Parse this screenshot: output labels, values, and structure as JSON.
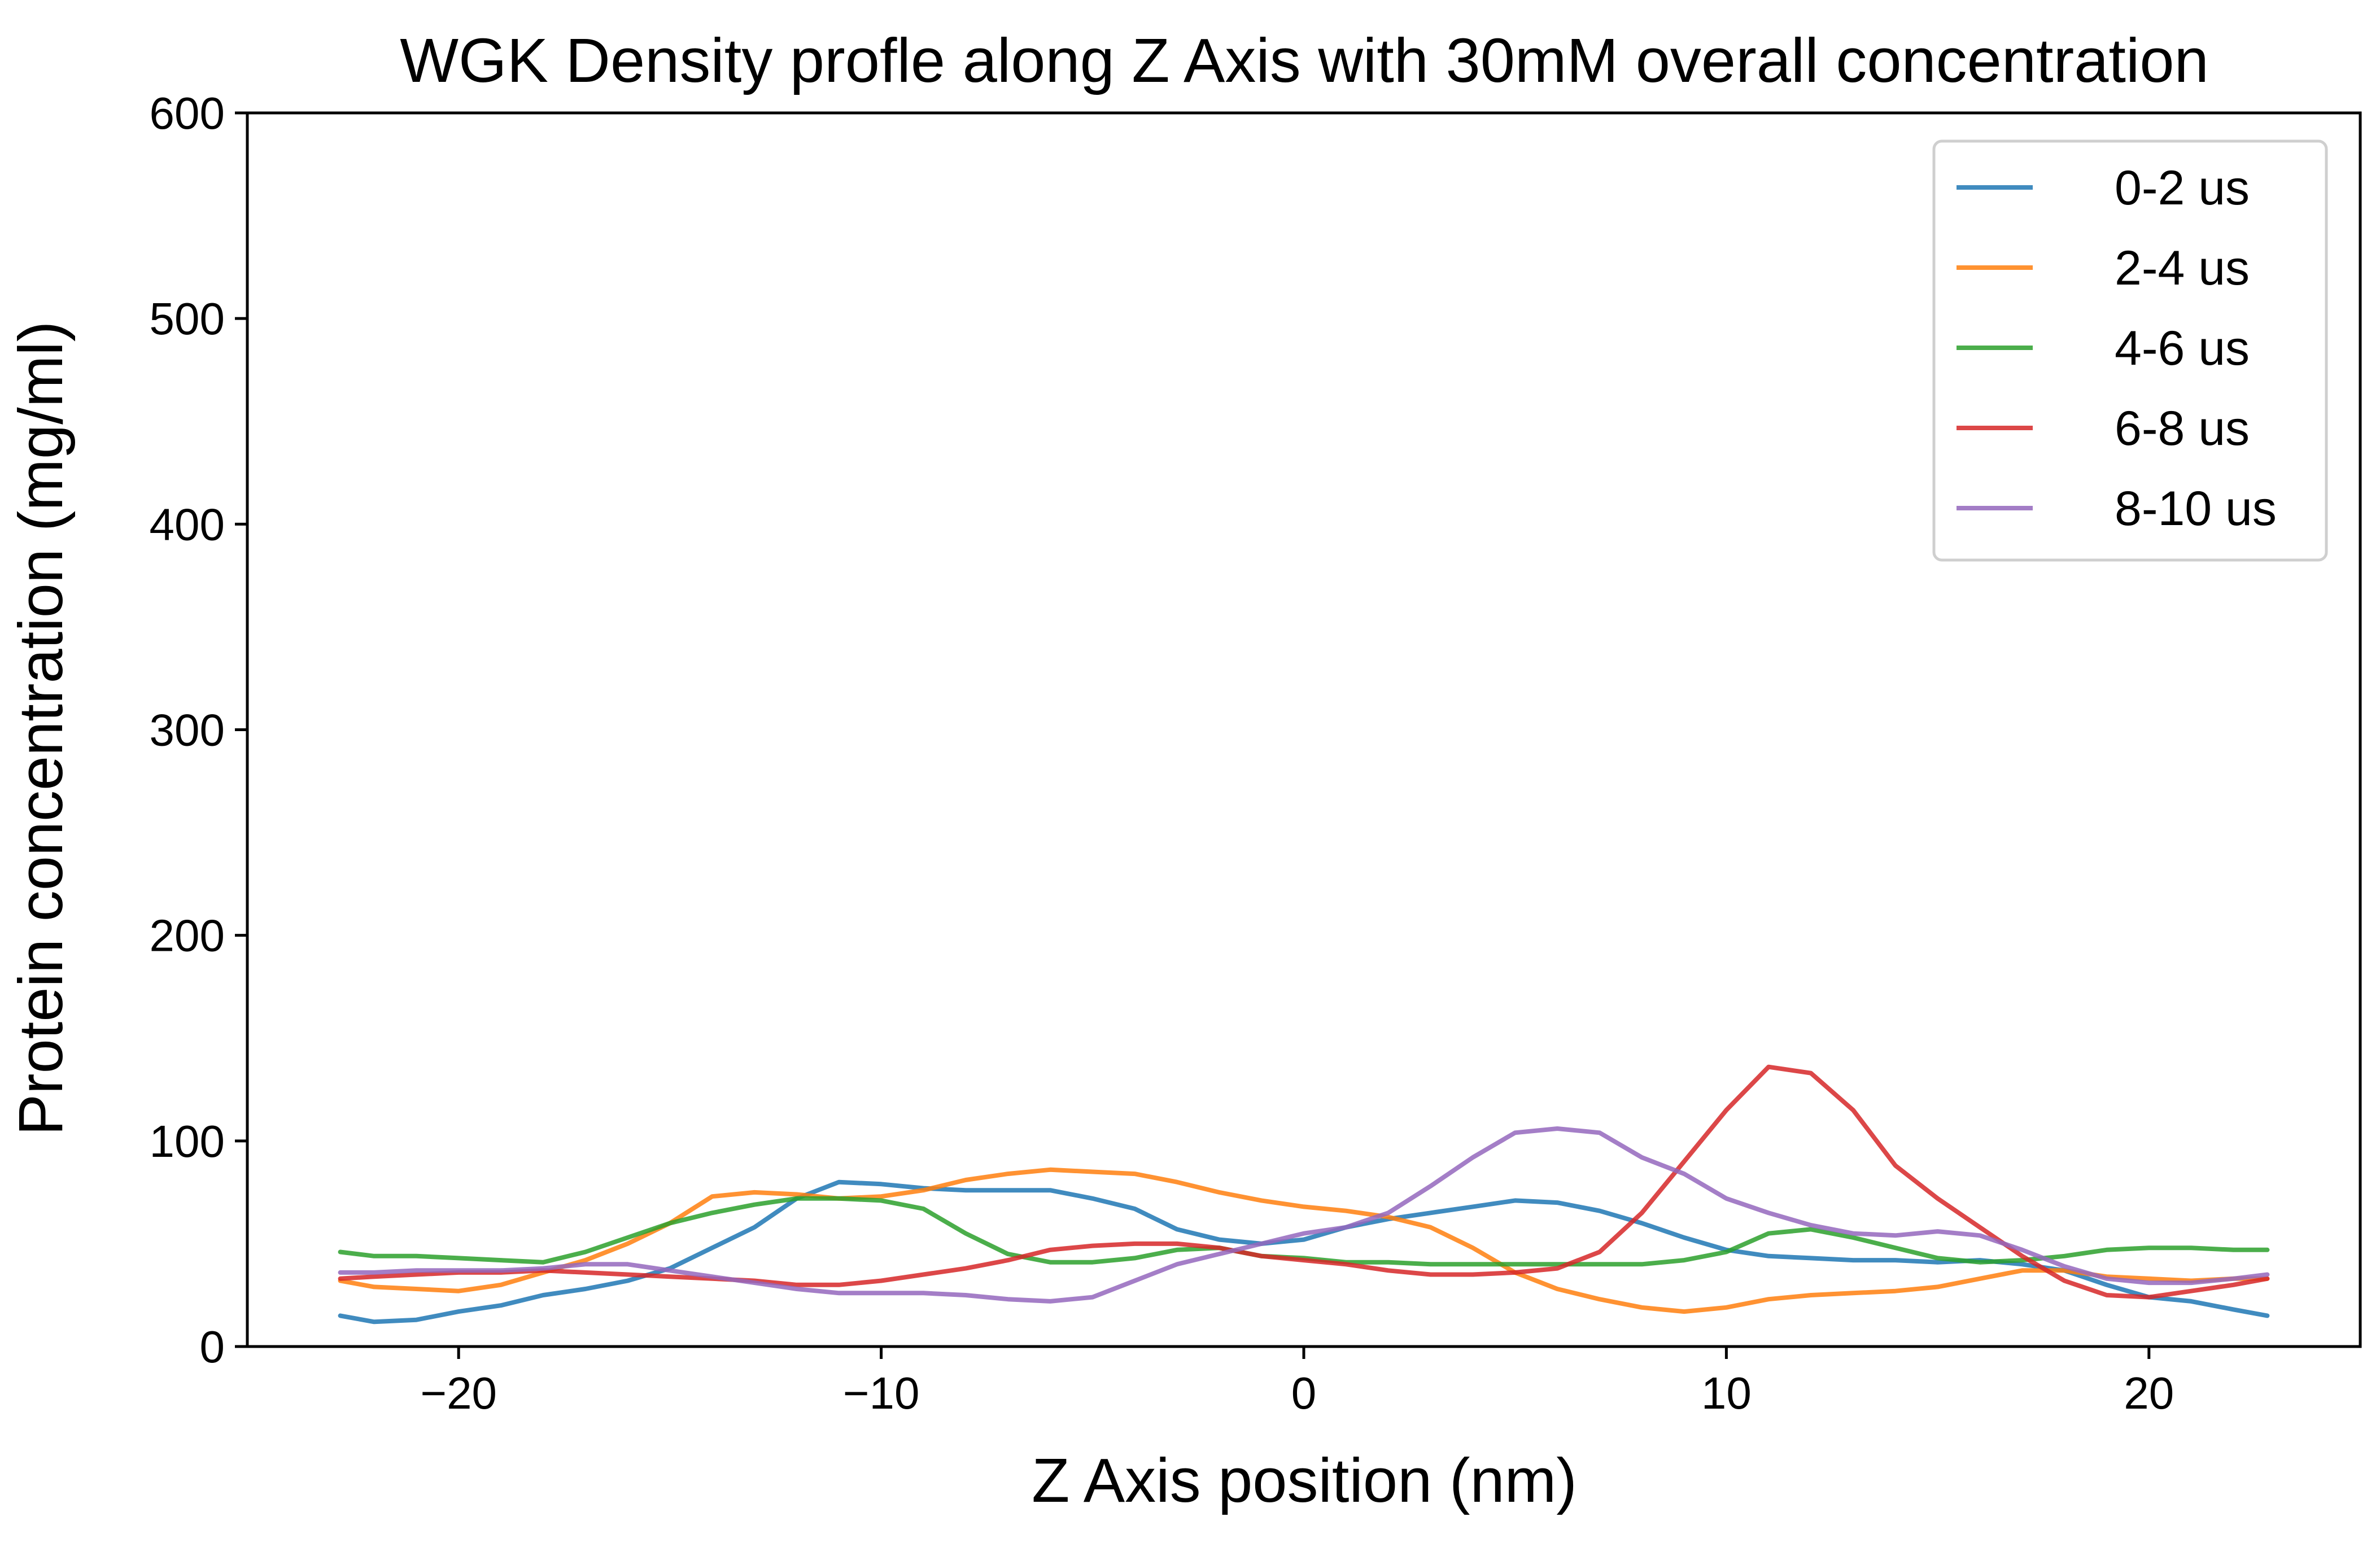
{
  "chart_data": {
    "type": "line",
    "title": "WGK Density profle along Z Axis with 30mM overall concentration",
    "xlabel": "Z Axis position (nm)",
    "ylabel": "Protein concentration (mg/ml)",
    "xlim": [
      -25,
      25
    ],
    "ylim": [
      0,
      600
    ],
    "xticks": [
      -20,
      -10,
      0,
      10,
      20
    ],
    "xtick_labels": [
      "−20",
      "−10",
      "0",
      "10",
      "20"
    ],
    "yticks": [
      0,
      100,
      200,
      300,
      400,
      500,
      600
    ],
    "ytick_labels": [
      "0",
      "100",
      "200",
      "300",
      "400",
      "500",
      "600"
    ],
    "grid": false,
    "legend_position": "top-right",
    "series": [
      {
        "name": "0-2 us",
        "color": "#1f77b4",
        "x": [
          -22.8,
          -22,
          -21,
          -20,
          -19,
          -18,
          -17,
          -16,
          -15,
          -14,
          -13,
          -12,
          -11,
          -10,
          -9,
          -8,
          -7,
          -6,
          -5,
          -4,
          -3,
          -2,
          -1,
          0,
          1,
          2,
          3,
          4,
          5,
          6,
          7,
          8,
          9,
          10,
          11,
          12,
          13,
          14,
          15,
          16,
          17,
          18,
          19,
          20,
          21,
          22,
          22.8
        ],
        "y": [
          15,
          12,
          13,
          17,
          20,
          25,
          28,
          32,
          38,
          48,
          58,
          72,
          80,
          79,
          77,
          76,
          76,
          76,
          72,
          67,
          57,
          52,
          50,
          52,
          58,
          62,
          65,
          68,
          71,
          70,
          66,
          60,
          53,
          47,
          44,
          43,
          42,
          42,
          41,
          42,
          40,
          37,
          30,
          24,
          22,
          18,
          15
        ]
      },
      {
        "name": "2-4 us",
        "color": "#ff7f0e",
        "x": [
          -22.8,
          -22,
          -21,
          -20,
          -19,
          -18,
          -17,
          -16,
          -15,
          -14,
          -13,
          -12,
          -11,
          -10,
          -9,
          -8,
          -7,
          -6,
          -5,
          -4,
          -3,
          -2,
          -1,
          0,
          1,
          2,
          3,
          4,
          5,
          6,
          7,
          8,
          9,
          10,
          11,
          12,
          13,
          14,
          15,
          16,
          17,
          18,
          19,
          20,
          21,
          22,
          22.8
        ],
        "y": [
          32,
          29,
          28,
          27,
          30,
          36,
          42,
          50,
          60,
          73,
          75,
          74,
          72,
          73,
          76,
          81,
          84,
          86,
          85,
          84,
          80,
          75,
          71,
          68,
          66,
          63,
          58,
          48,
          36,
          28,
          23,
          19,
          17,
          19,
          23,
          25,
          26,
          27,
          29,
          33,
          37,
          37,
          34,
          33,
          32,
          33,
          33
        ]
      },
      {
        "name": "4-6 us",
        "color": "#2ca02c",
        "x": [
          -22.8,
          -22,
          -21,
          -20,
          -19,
          -18,
          -17,
          -16,
          -15,
          -14,
          -13,
          -12,
          -11,
          -10,
          -9,
          -8,
          -7,
          -6,
          -5,
          -4,
          -3,
          -2,
          -1,
          0,
          1,
          2,
          3,
          4,
          5,
          6,
          7,
          8,
          9,
          10,
          11,
          12,
          13,
          14,
          15,
          16,
          17,
          18,
          19,
          20,
          21,
          22,
          22.8
        ],
        "y": [
          46,
          44,
          44,
          43,
          42,
          41,
          46,
          53,
          60,
          65,
          69,
          72,
          72,
          71,
          67,
          55,
          45,
          41,
          41,
          43,
          47,
          48,
          44,
          43,
          41,
          41,
          40,
          40,
          40,
          40,
          40,
          40,
          42,
          46,
          55,
          57,
          53,
          48,
          43,
          41,
          42,
          44,
          47,
          48,
          48,
          47,
          47
        ]
      },
      {
        "name": "6-8 us",
        "color": "#d62728",
        "x": [
          -22.8,
          -22,
          -21,
          -20,
          -19,
          -18,
          -17,
          -16,
          -15,
          -14,
          -13,
          -12,
          -11,
          -10,
          -9,
          -8,
          -7,
          -6,
          -5,
          -4,
          -3,
          -2,
          -1,
          0,
          1,
          2,
          3,
          4,
          5,
          6,
          7,
          8,
          9,
          10,
          11,
          12,
          13,
          14,
          15,
          16,
          17,
          18,
          19,
          20,
          21,
          22,
          22.8
        ],
        "y": [
          33,
          34,
          35,
          36,
          36,
          37,
          36,
          35,
          34,
          33,
          32,
          30,
          30,
          32,
          35,
          38,
          42,
          47,
          49,
          50,
          50,
          48,
          44,
          42,
          40,
          37,
          35,
          35,
          36,
          38,
          46,
          65,
          90,
          115,
          136,
          133,
          115,
          88,
          72,
          58,
          44,
          32,
          25,
          24,
          27,
          30,
          33
        ]
      },
      {
        "name": "8-10 us",
        "color": "#9467bd",
        "x": [
          -22.8,
          -22,
          -21,
          -20,
          -19,
          -18,
          -17,
          -16,
          -15,
          -14,
          -13,
          -12,
          -11,
          -10,
          -9,
          -8,
          -7,
          -6,
          -5,
          -4,
          -3,
          -2,
          -1,
          0,
          1,
          2,
          3,
          4,
          5,
          6,
          7,
          8,
          9,
          10,
          11,
          12,
          13,
          14,
          15,
          16,
          17,
          18,
          19,
          20,
          21,
          22,
          22.8
        ],
        "y": [
          36,
          36,
          37,
          37,
          37,
          38,
          40,
          40,
          37,
          34,
          31,
          28,
          26,
          26,
          26,
          25,
          23,
          22,
          24,
          32,
          40,
          45,
          50,
          55,
          58,
          65,
          78,
          92,
          104,
          106,
          104,
          92,
          84,
          72,
          65,
          59,
          55,
          54,
          56,
          54,
          47,
          39,
          33,
          31,
          31,
          33,
          35
        ]
      }
    ]
  }
}
